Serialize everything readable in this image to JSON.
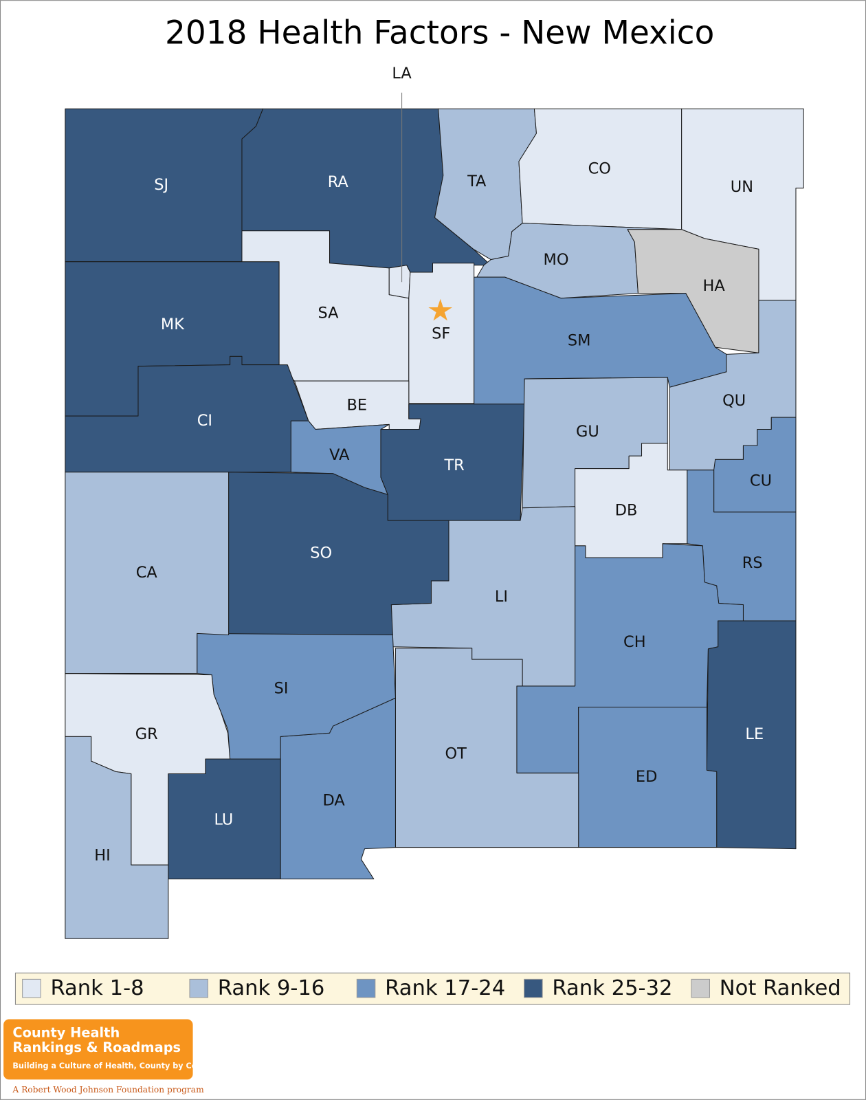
{
  "title": "2018 Health Factors - New Mexico",
  "legend": [
    {
      "label": "Rank 1-8",
      "color": "#e2e9f3"
    },
    {
      "label": "Rank 9-16",
      "color": "#aabfda"
    },
    {
      "label": "Rank 17-24",
      "color": "#6e94c2"
    },
    {
      "label": "Rank 25-32",
      "color": "#37587f"
    },
    {
      "label": "Not Ranked",
      "color": "#cccccc"
    }
  ],
  "counties": [
    {
      "label": "SJ",
      "group": 3
    },
    {
      "label": "RA",
      "group": 3
    },
    {
      "label": "TA",
      "group": 1
    },
    {
      "label": "CO",
      "group": 0
    },
    {
      "label": "UN",
      "group": 0
    },
    {
      "label": "MO",
      "group": 1
    },
    {
      "label": "HA",
      "group": 4
    },
    {
      "label": "SA",
      "group": 0
    },
    {
      "label": "LA",
      "group": 0
    },
    {
      "label": "SF",
      "group": 0
    },
    {
      "label": "SM",
      "group": 2
    },
    {
      "label": "QU",
      "group": 1
    },
    {
      "label": "CU",
      "group": 2
    },
    {
      "label": "MK",
      "group": 3
    },
    {
      "label": "CI",
      "group": 3
    },
    {
      "label": "BE",
      "group": 0
    },
    {
      "label": "VA",
      "group": 2
    },
    {
      "label": "TR",
      "group": 3
    },
    {
      "label": "GU",
      "group": 1
    },
    {
      "label": "DB",
      "group": 0
    },
    {
      "label": "RS",
      "group": 2
    },
    {
      "label": "CH",
      "group": 2
    },
    {
      "label": "LE",
      "group": 3
    },
    {
      "label": "ED",
      "group": 2
    },
    {
      "label": "LI",
      "group": 1
    },
    {
      "label": "OT",
      "group": 1
    },
    {
      "label": "DA",
      "group": 2
    },
    {
      "label": "SO",
      "group": 3
    },
    {
      "label": "SI",
      "group": 2
    },
    {
      "label": "CA",
      "group": 1
    },
    {
      "label": "GR",
      "group": 0
    },
    {
      "label": "LU",
      "group": 3
    },
    {
      "label": "HI",
      "group": 1
    }
  ],
  "logo": {
    "line1": "County Health",
    "line2": "Rankings & Roadmaps",
    "tagline": "Building a Culture of Health, County by County",
    "program": "A Robert Wood Johnson Foundation program"
  }
}
